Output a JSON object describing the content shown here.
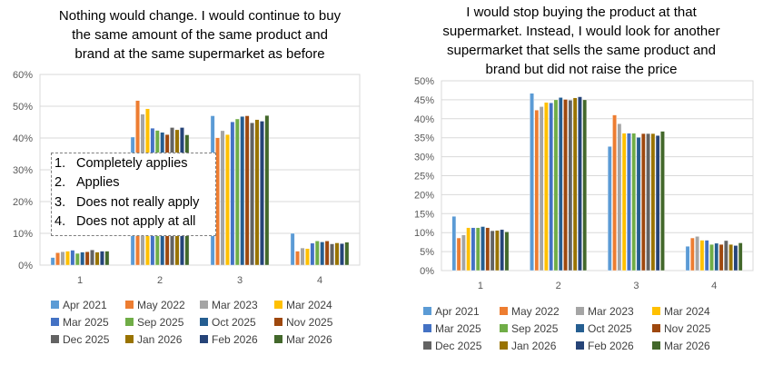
{
  "series_colors": [
    "#5B9BD5",
    "#ED7D31",
    "#A5A5A5",
    "#FFC000",
    "#4472C4",
    "#70AD47",
    "#255E91",
    "#9E480E",
    "#636363",
    "#997300",
    "#264478",
    "#43682B"
  ],
  "scale_legend": [
    {
      "num": "1.",
      "label": "Completely applies"
    },
    {
      "num": "2.",
      "label": "Applies"
    },
    {
      "num": "3.",
      "label": "Does not really apply"
    },
    {
      "num": "4.",
      "label": "Does not apply at all"
    }
  ],
  "chart_data": [
    {
      "type": "bar",
      "title": "Nothing would change. I would continue to buy the same amount of the same product and brand at the same supermarket as before",
      "title_lines": [
        "Nothing would change. I would continue to buy",
        "the same amount of the same product and",
        "brand at the same supermarket as before"
      ],
      "xlabel": "",
      "ylabel": "",
      "categories": [
        "1",
        "2",
        "3",
        "4"
      ],
      "ylim": [
        0,
        60
      ],
      "yticks": [
        0,
        10,
        20,
        30,
        40,
        50,
        60
      ],
      "ytick_labels": [
        "0%",
        "10%",
        "20%",
        "30%",
        "40%",
        "50%",
        "60%"
      ],
      "grid": true,
      "legend_position": "bottom",
      "series": [
        {
          "name": "Apr 2021",
          "values": [
            2.4,
            40.3,
            47.0,
            10.0
          ]
        },
        {
          "name": "May 2022",
          "values": [
            3.9,
            51.8,
            40.1,
            4.4
          ]
        },
        {
          "name": "Mar 2023",
          "values": [
            4.2,
            47.5,
            42.3,
            5.4
          ]
        },
        {
          "name": "Mar 2024",
          "values": [
            4.4,
            49.2,
            41.1,
            5.2
          ]
        },
        {
          "name": "Mar 2025",
          "values": [
            4.7,
            43.1,
            45.1,
            6.9
          ]
        },
        {
          "name": "Sep 2025",
          "values": [
            3.7,
            42.4,
            46.0,
            7.6
          ]
        },
        {
          "name": "Oct 2025",
          "values": [
            4.1,
            41.8,
            46.8,
            7.3
          ]
        },
        {
          "name": "Nov 2025",
          "values": [
            4.2,
            41.1,
            47.0,
            7.6
          ]
        },
        {
          "name": "Dec 2025",
          "values": [
            4.8,
            43.3,
            44.8,
            6.7
          ]
        },
        {
          "name": "Jan 2026",
          "values": [
            4.1,
            42.6,
            45.8,
            7.0
          ]
        },
        {
          "name": "Feb 2026",
          "values": [
            4.4,
            43.3,
            45.3,
            6.8
          ]
        },
        {
          "name": "Mar 2026",
          "values": [
            4.4,
            41.0,
            47.1,
            7.2
          ]
        }
      ]
    },
    {
      "type": "bar",
      "title": "I would stop buying the product at that supermarket. Instead, I would look for another supermarket that sells the same product and brand but did not raise the price",
      "title_lines": [
        "I would stop buying the product at that",
        "supermarket. Instead, I would look for another",
        "supermarket that sells the same product and",
        "brand but did not raise the price"
      ],
      "xlabel": "",
      "ylabel": "",
      "categories": [
        "1",
        "2",
        "3",
        "4"
      ],
      "ylim": [
        0,
        50
      ],
      "yticks": [
        0,
        5,
        10,
        15,
        20,
        25,
        30,
        35,
        40,
        45,
        50
      ],
      "ytick_labels": [
        "0%",
        "5%",
        "10%",
        "15%",
        "20%",
        "25%",
        "30%",
        "35%",
        "40%",
        "45%",
        "50%"
      ],
      "grid": true,
      "legend_position": "bottom",
      "series": [
        {
          "name": "Apr 2021",
          "values": [
            14.3,
            46.7,
            32.7,
            6.4
          ]
        },
        {
          "name": "May 2022",
          "values": [
            8.6,
            42.3,
            41.0,
            8.6
          ]
        },
        {
          "name": "Mar 2023",
          "values": [
            9.4,
            43.2,
            38.7,
            9.0
          ]
        },
        {
          "name": "Mar 2024",
          "values": [
            11.3,
            44.3,
            36.2,
            8.0
          ]
        },
        {
          "name": "Mar 2025",
          "values": [
            11.3,
            44.2,
            36.2,
            8.0
          ]
        },
        {
          "name": "Sep 2025",
          "values": [
            11.3,
            45.0,
            36.2,
            6.9
          ]
        },
        {
          "name": "Oct 2025",
          "values": [
            11.6,
            45.6,
            35.1,
            7.2
          ]
        },
        {
          "name": "Nov 2025",
          "values": [
            11.3,
            45.1,
            36.1,
            6.9
          ]
        },
        {
          "name": "Dec 2025",
          "values": [
            10.5,
            44.9,
            36.1,
            7.9
          ]
        },
        {
          "name": "Jan 2026",
          "values": [
            10.6,
            45.5,
            36.1,
            6.9
          ]
        },
        {
          "name": "Feb 2026",
          "values": [
            10.8,
            45.8,
            35.6,
            6.6
          ]
        },
        {
          "name": "Mar 2026",
          "values": [
            10.2,
            45.0,
            36.7,
            7.3
          ]
        }
      ]
    }
  ]
}
